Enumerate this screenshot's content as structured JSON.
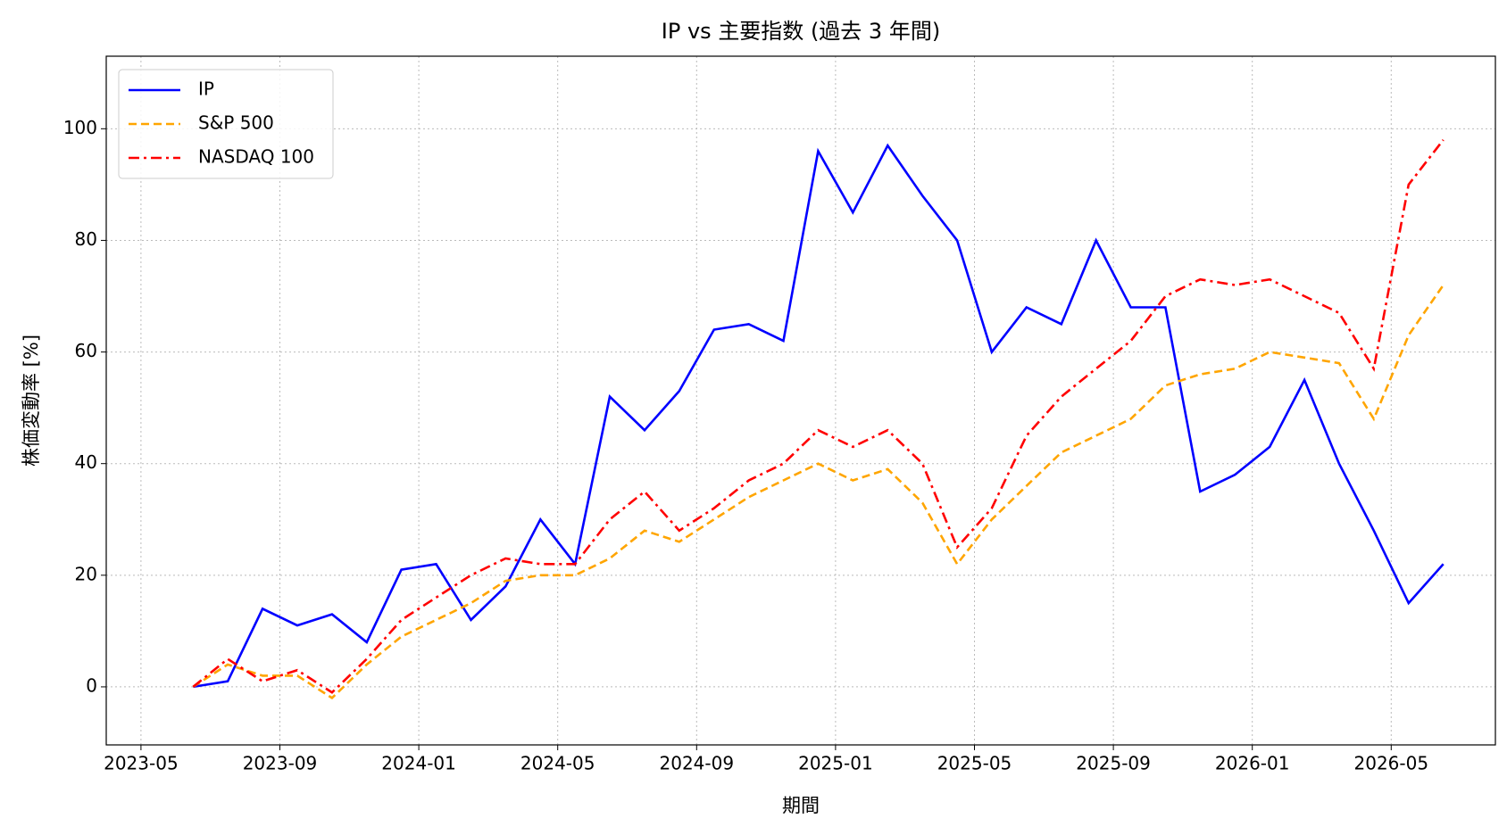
{
  "chart_data": {
    "type": "line",
    "title": "IP vs 主要指数 (過去 3 年間)",
    "x_label": "期間",
    "y_label": "株価変動率 [%]",
    "x": [
      "2023-06",
      "2023-07",
      "2023-08",
      "2023-09",
      "2023-10",
      "2023-11",
      "2023-12",
      "2024-01",
      "2024-02",
      "2024-03",
      "2024-04",
      "2024-05",
      "2024-06",
      "2024-07",
      "2024-08",
      "2024-09",
      "2024-10",
      "2024-11",
      "2024-12",
      "2025-01",
      "2025-02",
      "2025-03",
      "2025-04",
      "2025-05",
      "2025-06",
      "2025-07",
      "2025-08",
      "2025-09",
      "2025-10",
      "2025-11",
      "2025-12",
      "2026-01",
      "2026-02",
      "2026-03",
      "2026-04",
      "2026-05",
      "2026-06"
    ],
    "series": [
      {
        "name": "IP",
        "color": "#0000ff",
        "linestyle": "solid",
        "values": [
          0,
          1,
          14,
          11,
          13,
          8,
          21,
          22,
          12,
          18,
          30,
          22,
          52,
          46,
          53,
          64,
          65,
          62,
          96,
          85,
          97,
          88,
          80,
          60,
          68,
          65,
          80,
          68,
          68,
          35,
          38,
          43,
          55,
          40,
          28,
          15,
          22
        ]
      },
      {
        "name": "S&P 500",
        "color": "#ffa500",
        "linestyle": "dashed",
        "values": [
          0,
          4,
          2,
          2,
          -2,
          4,
          9,
          12,
          15,
          19,
          20,
          20,
          23,
          28,
          26,
          30,
          34,
          37,
          40,
          37,
          39,
          33,
          22,
          30,
          36,
          42,
          45,
          48,
          54,
          56,
          57,
          60,
          59,
          58,
          48,
          63,
          72
        ]
      },
      {
        "name": "NASDAQ 100",
        "color": "#ff0000",
        "linestyle": "dashdot",
        "values": [
          0,
          5,
          1,
          3,
          -1,
          5,
          12,
          16,
          20,
          23,
          22,
          22,
          30,
          35,
          28,
          32,
          37,
          40,
          46,
          43,
          46,
          40,
          25,
          32,
          45,
          52,
          57,
          62,
          70,
          73,
          72,
          73,
          70,
          67,
          57,
          90,
          98
        ]
      }
    ],
    "xlim": [
      "2023-04",
      "2026-08"
    ],
    "xticks": [
      "2023-05",
      "2023-09",
      "2024-01",
      "2024-05",
      "2024-09",
      "2025-01",
      "2025-05",
      "2025-09",
      "2026-01",
      "2026-05"
    ],
    "ylim": [
      -10.4,
      113
    ],
    "yticks": [
      0,
      20,
      40,
      60,
      80,
      100
    ],
    "grid": true,
    "legend": "upper-left"
  }
}
